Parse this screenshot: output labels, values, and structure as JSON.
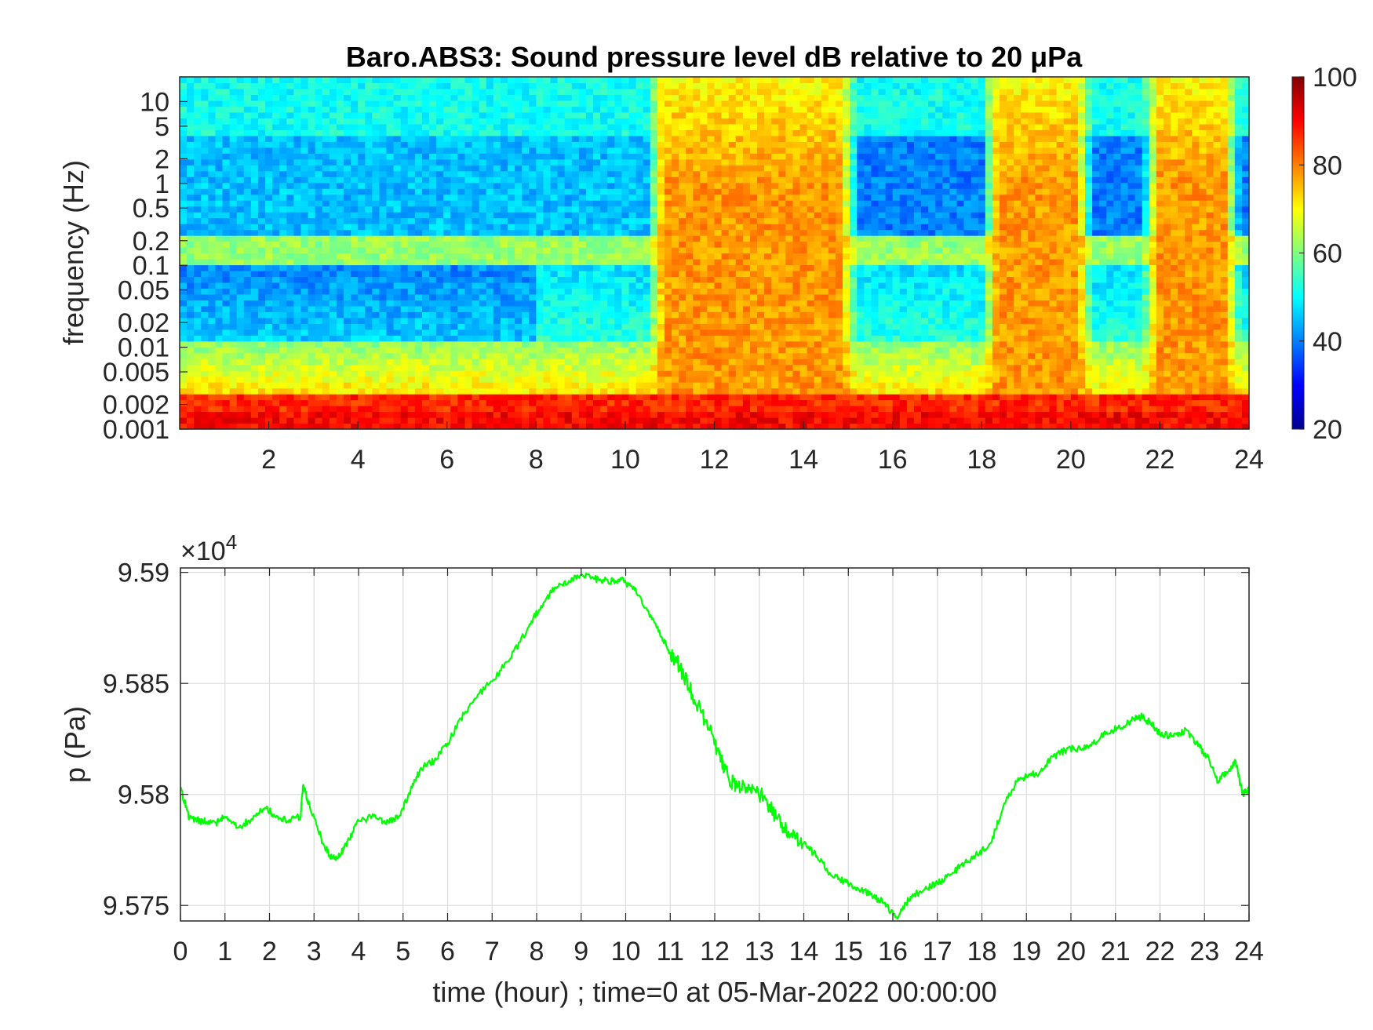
{
  "chart_data": [
    {
      "type": "heatmap",
      "title": "Baro.ABS3: Sound pressure level dB relative to 20 μPa",
      "ylabel": "frequency (Hz)",
      "yscale": "log",
      "ylim": [
        0.001,
        20
      ],
      "xlim": [
        0,
        24
      ],
      "x_ticks": [
        "2",
        "4",
        "6",
        "8",
        "10",
        "12",
        "14",
        "16",
        "18",
        "20",
        "22",
        "24"
      ],
      "y_ticks": [
        "0.001",
        "0.002",
        "0.005",
        "0.01",
        "0.02",
        "0.05",
        "0.1",
        "0.2",
        "0.5",
        "1",
        "2",
        "5",
        "10"
      ],
      "colormap": "jet",
      "colorbar": {
        "ticks": [
          "20",
          "40",
          "60",
          "80",
          "100"
        ],
        "range": [
          20,
          100
        ]
      },
      "description_values": {
        "time_blocks_hours": [
          0,
          10.5,
          15.2,
          18,
          21.6,
          24
        ],
        "loud_periods_hours": [
          [
            10.5,
            15.2
          ],
          [
            18,
            20.5
          ],
          [
            21.6,
            23.8
          ]
        ],
        "level_low_freq_dB": 85,
        "level_quiet_band_dB": 43,
        "level_loud_period_dB": 78
      }
    },
    {
      "type": "line",
      "ylabel": "p (Pa)",
      "xlabel": "time (hour) ; time=0 at 05-Mar-2022 00:00:00",
      "exponent_label": "×10",
      "exponent_power": "4",
      "xlim": [
        0,
        24
      ],
      "ylim": [
        9.5743,
        9.5902
      ],
      "x_ticks": [
        "0",
        "1",
        "2",
        "3",
        "4",
        "5",
        "6",
        "7",
        "8",
        "9",
        "10",
        "11",
        "12",
        "13",
        "14",
        "15",
        "16",
        "17",
        "18",
        "19",
        "20",
        "21",
        "22",
        "23",
        "24"
      ],
      "y_ticks": [
        "9.575",
        "9.58",
        "9.585",
        "9.59"
      ],
      "grid": true,
      "line_color": "#00ff00",
      "series": [
        {
          "x": [
            0,
            0.2,
            0.5,
            0.8,
            1.0,
            1.3,
            1.6,
            1.9,
            2.1,
            2.4,
            2.7,
            2.75,
            2.9,
            3.2,
            3.4,
            3.6,
            3.8,
            4.0,
            4.3,
            4.6,
            4.9,
            5.2,
            5.4,
            5.7,
            6.0,
            6.3,
            6.6,
            7.0,
            7.4,
            7.8,
            8.1,
            8.4,
            8.7,
            9.0,
            9.3,
            9.6,
            9.9,
            10.2,
            10.5,
            10.8,
            11.0,
            11.2,
            11.5,
            11.8,
            12.1,
            12.3,
            12.5,
            12.8,
            13.1,
            13.4,
            13.7,
            14.0,
            14.3,
            14.6,
            14.9,
            15.2,
            15.5,
            15.8,
            16.1,
            16.4,
            16.7,
            17.0,
            17.3,
            17.6,
            17.9,
            18.2,
            18.5,
            18.8,
            19.0,
            19.3,
            19.6,
            19.9,
            20.2,
            20.5,
            20.8,
            21.1,
            21.4,
            21.6,
            21.8,
            22.0,
            22.3,
            22.6,
            22.9,
            23.1,
            23.3,
            23.5,
            23.7,
            23.85,
            24.0
          ],
          "values": [
            9.5803,
            9.5789,
            9.5788,
            9.5787,
            9.579,
            9.5785,
            9.5789,
            9.5794,
            9.5791,
            9.5788,
            9.579,
            9.5804,
            9.5795,
            9.5778,
            9.5771,
            9.5773,
            9.578,
            9.5788,
            9.579,
            9.5787,
            9.579,
            9.5803,
            9.5812,
            9.5815,
            9.5823,
            9.5834,
            9.5843,
            9.5851,
            9.5861,
            9.5875,
            9.5885,
            9.5893,
            9.5895,
            9.5899,
            9.5897,
            9.5896,
            9.5897,
            9.5892,
            9.5883,
            9.5871,
            9.5864,
            9.5858,
            9.5845,
            9.5833,
            9.5818,
            9.5808,
            9.5803,
            9.5803,
            9.5799,
            9.5789,
            9.5782,
            9.5778,
            9.5772,
            9.5764,
            9.5761,
            9.5758,
            9.5755,
            9.5751,
            9.5744,
            9.5754,
            9.5757,
            9.576,
            9.5764,
            9.5769,
            9.5773,
            9.5778,
            9.5796,
            9.5806,
            9.5808,
            9.581,
            9.5817,
            9.582,
            9.5821,
            9.5823,
            9.5828,
            9.583,
            9.5834,
            9.5835,
            9.5832,
            9.5827,
            9.5826,
            9.5829,
            9.5821,
            9.5816,
            9.5806,
            9.581,
            9.5815,
            9.58,
            9.5802
          ]
        }
      ]
    }
  ]
}
